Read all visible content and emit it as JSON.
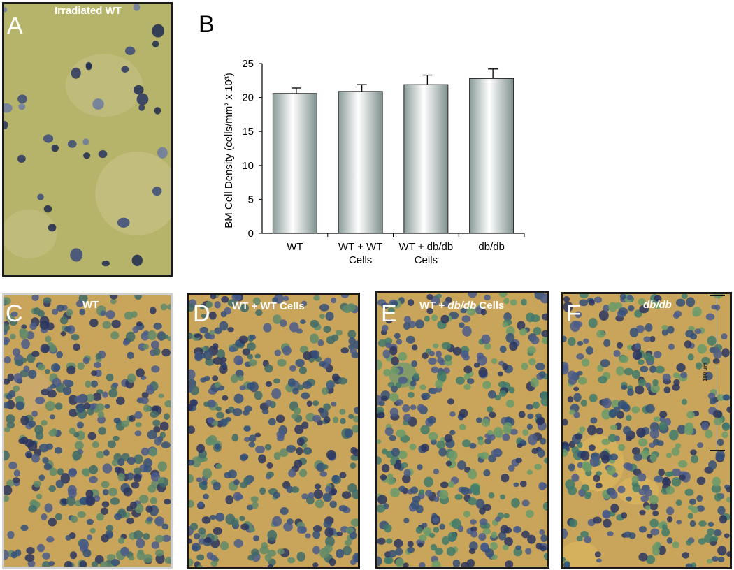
{
  "panels": {
    "A": {
      "letter": "A",
      "title": "Irradiated WT"
    },
    "C": {
      "letter": "C",
      "title": "WT"
    },
    "D": {
      "letter": "D",
      "title": "WT + WT Cells"
    },
    "E": {
      "letter": "E",
      "title_pre": "WT + ",
      "title_em": "db/db",
      "title_post": " Cells"
    },
    "F": {
      "letter": "F",
      "title_em": "db/db",
      "scale_bar": "100 µm"
    }
  },
  "colors": {
    "tissue_green": "#b5b46a",
    "tissue_tan": "#c8a55a",
    "nucleus": "#2e3a66",
    "frame": "#1a1a1a"
  },
  "chart_data": {
    "type": "bar",
    "panel_letter": "B",
    "categories": [
      "WT",
      "WT + WT Cells",
      "WT + db/db Cells",
      "db/db"
    ],
    "category_lines": [
      [
        "WT"
      ],
      [
        "WT + WT",
        "Cells"
      ],
      [
        "WT + db/db",
        "Cells"
      ],
      [
        "db/db"
      ]
    ],
    "values": [
      20.6,
      20.9,
      21.9,
      22.8
    ],
    "errors": [
      0.8,
      1.0,
      1.4,
      1.4
    ],
    "ylabel": "BM Cell Density (cells/mm² x 10³)",
    "ylim": [
      0,
      25
    ],
    "yticks": [
      0,
      5,
      10,
      15,
      20,
      25
    ],
    "grid": false
  }
}
